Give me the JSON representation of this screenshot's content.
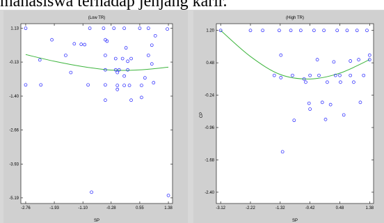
{
  "page": {
    "top_text": "mahasiswa terhadap jenjang karir."
  },
  "chart_data": [
    {
      "type": "scatter",
      "title": "(Low TR)",
      "xlabel": "SP",
      "ylabel": "",
      "xlim": [
        -2.9,
        1.5
      ],
      "ylim": [
        -5.4,
        1.3
      ],
      "xticks": [
        -2.76,
        -1.93,
        -1.1,
        -0.28,
        0.55,
        1.38
      ],
      "xtick_labels": [
        "-2.76",
        "-1.93",
        "-1.10",
        "-0.28",
        "0.55",
        "1.38"
      ],
      "yticks": [
        1.13,
        -0.13,
        -1.4,
        -2.66,
        -3.93,
        -5.19
      ],
      "ytick_labels": [
        "1.13",
        "-0.13",
        "-1.40",
        "-2.66",
        "-3.93",
        "-5.19"
      ],
      "grid": false,
      "fit_curve": {
        "x": [
          -2.76,
          -1.93,
          -1.1,
          -0.28,
          0.55,
          1.38
        ],
        "y": [
          0.15,
          -0.1,
          -0.3,
          -0.43,
          -0.42,
          -0.32
        ]
      },
      "points": {
        "x": [
          -2.76,
          -2.76,
          -2.35,
          -2.32,
          -2.0,
          -1.6,
          -1.45,
          -1.35,
          -1.15,
          -1.05,
          -0.95,
          -0.9,
          -0.85,
          -0.5,
          -0.45,
          -0.45,
          -0.45,
          -0.45,
          -0.45,
          -0.4,
          -0.2,
          -0.15,
          -0.15,
          -0.1,
          -0.1,
          -0.1,
          -0.05,
          0.05,
          0.1,
          0.1,
          0.1,
          0.15,
          0.2,
          0.2,
          0.25,
          0.3,
          0.3,
          0.55,
          0.6,
          0.6,
          0.7,
          0.8,
          0.8,
          0.9,
          0.9,
          0.95,
          1.0,
          1.35,
          1.38
        ],
        "y": [
          1.13,
          -0.98,
          -0.05,
          -0.98,
          0.7,
          0.12,
          -0.52,
          0.55,
          0.53,
          0.52,
          -0.98,
          1.13,
          -4.98,
          1.13,
          0.7,
          0.12,
          -0.42,
          -0.98,
          -1.55,
          0.65,
          1.13,
          0.0,
          -0.42,
          -0.52,
          -1.0,
          -1.15,
          -0.42,
          0.0,
          1.13,
          -0.65,
          -1.0,
          0.4,
          -0.1,
          -0.42,
          -1.0,
          0.0,
          -1.55,
          1.13,
          -1.0,
          -1.45,
          -0.72,
          1.13,
          0.12,
          0.5,
          -0.2,
          -0.9,
          0.85,
          1.1,
          -5.1
        ]
      }
    },
    {
      "type": "scatter",
      "title": "(High TR)",
      "xlabel": "SP",
      "ylabel": "CP",
      "xlim": [
        -3.25,
        1.5
      ],
      "ylim": [
        -2.65,
        1.35
      ],
      "xticks": [
        -3.12,
        -2.22,
        -1.32,
        -0.42,
        0.48,
        1.38
      ],
      "xtick_labels": [
        "-3.12",
        "-2.22",
        "-1.32",
        "-0.42",
        "0.48",
        "1.38"
      ],
      "yticks": [
        1.2,
        0.48,
        -0.24,
        -0.96,
        -1.68,
        -2.4
      ],
      "ytick_labels": [
        "1.20",
        "0.48",
        "-0.24",
        "-0.96",
        "-1.68",
        "-2.40"
      ],
      "grid": false,
      "fit_curve": {
        "x": [
          -3.12,
          -2.22,
          -1.32,
          -0.42,
          0.48,
          1.38
        ],
        "y": [
          1.2,
          0.62,
          0.22,
          0.12,
          0.25,
          0.55
        ]
      },
      "points": {
        "x": [
          -3.12,
          -2.22,
          -1.85,
          -1.5,
          -1.35,
          -1.3,
          -1.3,
          -1.25,
          -1.0,
          -0.95,
          -0.9,
          -0.7,
          -0.6,
          -0.55,
          -0.45,
          -0.42,
          -0.42,
          -0.3,
          -0.2,
          -0.15,
          -0.05,
          0.0,
          0.05,
          0.1,
          0.2,
          0.3,
          0.35,
          0.4,
          0.48,
          0.5,
          0.6,
          0.7,
          0.8,
          0.8,
          0.9,
          1.0,
          1.05,
          1.1,
          1.2,
          1.3,
          1.38,
          1.38
        ],
        "y": [
          1.2,
          1.2,
          1.2,
          0.2,
          1.2,
          0.65,
          0.15,
          -1.5,
          1.2,
          0.2,
          -0.8,
          1.2,
          0.12,
          0.05,
          -0.42,
          -0.55,
          0.2,
          1.2,
          0.55,
          0.2,
          -0.4,
          1.2,
          -0.78,
          0.05,
          -0.45,
          0.5,
          0.2,
          1.2,
          0.2,
          0.05,
          -0.68,
          1.2,
          0.52,
          0.2,
          0.05,
          1.2,
          0.55,
          -0.4,
          0.2,
          1.2,
          0.55,
          0.65
        ]
      }
    }
  ]
}
